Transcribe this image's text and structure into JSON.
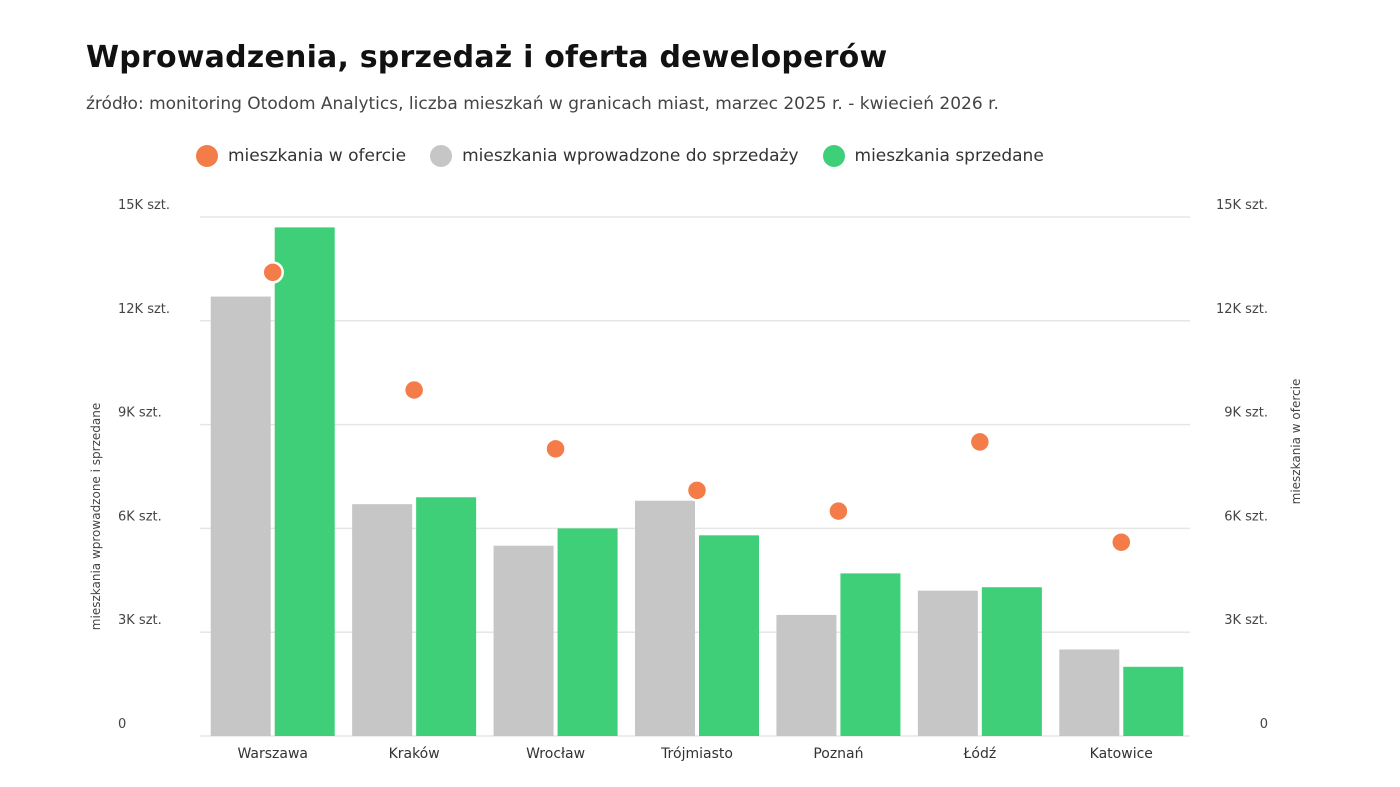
{
  "title": "Wprowadzenia, sprzedaż i oferta deweloperów",
  "subtitle": "źródło: monitoring Otodom Analytics, liczba mieszkań w granicach miast, marzec 2025 r. - kwiecień 2026 r.",
  "legend": [
    {
      "label": "mieszkania w ofercie",
      "color": "#f47c48",
      "icon": "orange-dot-icon"
    },
    {
      "label": "mieszkania wprowadzone do sprzedaży",
      "color": "#c6c6c6",
      "icon": "gray-dot-icon"
    },
    {
      "label": "mieszkania sprzedane",
      "color": "#3ecf78",
      "icon": "green-dot-icon"
    }
  ],
  "chart_data": {
    "type": "bar",
    "categories": [
      "Warszawa",
      "Kraków",
      "Wrocław",
      "Trójmiasto",
      "Poznań",
      "Łódź",
      "Katowice"
    ],
    "series": [
      {
        "name": "mieszkania wprowadzone do sprzedaży",
        "color": "#c6c6c6",
        "axis": "left",
        "values": [
          12700,
          6700,
          5500,
          6800,
          3500,
          4200,
          2500
        ]
      },
      {
        "name": "mieszkania sprzedane",
        "color": "#3ecf78",
        "axis": "left",
        "values": [
          14700,
          6900,
          6000,
          5800,
          4700,
          4300,
          2000
        ]
      },
      {
        "name": "mieszkania w ofercie",
        "color": "#f47c48",
        "axis": "right",
        "marker": "dot",
        "values": [
          13400,
          10000,
          8300,
          7100,
          6500,
          8500,
          5600
        ]
      }
    ],
    "ylabel_left": "mieszkania wprowadzone i sprzedane",
    "ylabel_right": "mieszkania w ofercie",
    "ylim": [
      0,
      15000
    ],
    "yticks": [
      0,
      3000,
      6000,
      9000,
      12000,
      15000
    ],
    "ytick_labels": [
      "0",
      "3K szt.",
      "6K szt.",
      "9K szt.",
      "12K szt.",
      "15K szt."
    ],
    "grid": true
  }
}
